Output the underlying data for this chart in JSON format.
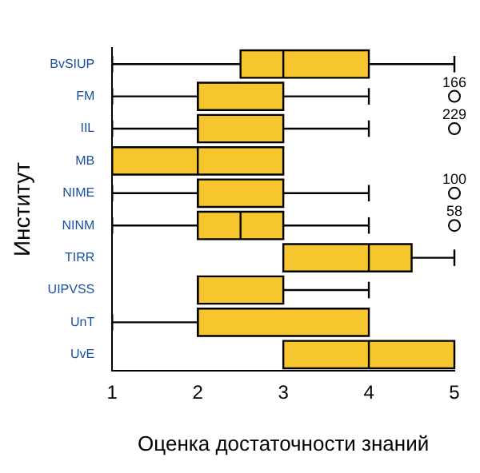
{
  "chart_data": {
    "type": "box",
    "orientation": "horizontal",
    "xlabel": "Оценка достаточности знаний",
    "ylabel": "Институт",
    "categories": [
      "BvSIUP",
      "FM",
      "IIL",
      "MB",
      "NIME",
      "NINM",
      "TIRR",
      "UIPVSS",
      "UnT",
      "UvE"
    ],
    "color": "#f7c62f",
    "boxes": [
      {
        "low": 1,
        "q1": 2.5,
        "median": 3,
        "q3": 4,
        "high": 5
      },
      {
        "low": 1,
        "q1": 2,
        "median": 2,
        "q3": 3,
        "high": 4,
        "outliers": [
          5
        ]
      },
      {
        "low": 1,
        "q1": 2,
        "median": 2,
        "q3": 3,
        "high": 4,
        "outliers": [
          5
        ]
      },
      {
        "low": 1,
        "q1": 1,
        "median": 2,
        "q3": 3,
        "high": 3
      },
      {
        "low": 1,
        "q1": 2,
        "median": 2,
        "q3": 3,
        "high": 4,
        "outliers": [
          5
        ]
      },
      {
        "low": 1,
        "q1": 2,
        "median": 2.5,
        "q3": 3,
        "high": 4,
        "outliers": [
          5
        ]
      },
      {
        "low": 3,
        "q1": 3,
        "median": 4,
        "q3": 4.5,
        "high": 5
      },
      {
        "low": 2,
        "q1": 2,
        "median": 2,
        "q3": 3,
        "high": 4
      },
      {
        "low": 1,
        "q1": 2,
        "median": 2,
        "q3": 4,
        "high": 4
      },
      {
        "low": 3,
        "q1": 3,
        "median": 4,
        "q3": 5,
        "high": 5
      }
    ],
    "xlim": [
      1,
      5
    ],
    "xticks": [
      1,
      2,
      3,
      4,
      5
    ],
    "grid": false,
    "legend": false,
    "annotations": [
      "166",
      "229",
      "100",
      "58"
    ]
  }
}
